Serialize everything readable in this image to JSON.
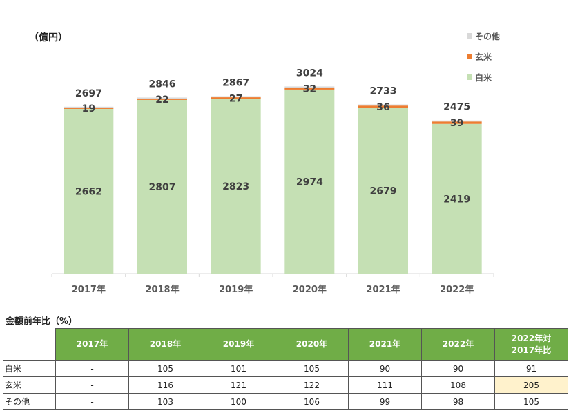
{
  "chart_data": {
    "type": "bar",
    "stacked": true,
    "unit_label": "（億円）",
    "categories": [
      "2017年",
      "2018年",
      "2019年",
      "2020年",
      "2021年",
      "2022年"
    ],
    "series": [
      {
        "name": "白米",
        "color": "#c5e0b4",
        "values": [
          2662,
          2807,
          2823,
          2974,
          2679,
          2419
        ]
      },
      {
        "name": "玄米",
        "color": "#ed7d31",
        "values": [
          19,
          22,
          27,
          32,
          36,
          39
        ]
      },
      {
        "name": "その他",
        "color": "#d9d9d9",
        "values": [
          16,
          17,
          17,
          18,
          18,
          17
        ]
      }
    ],
    "totals": [
      2697,
      2846,
      2867,
      3024,
      2733,
      2475
    ],
    "legend": [
      "その他",
      "玄米",
      "白米"
    ],
    "legend_position": "top-right",
    "ylim": [
      0,
      3100
    ]
  },
  "table": {
    "title": "金額前年比（%）",
    "headers": [
      "2017年",
      "2018年",
      "2019年",
      "2020年",
      "2021年",
      "2022年",
      "2022年対\n2017年比"
    ],
    "rows": [
      {
        "label": "白米",
        "values": [
          "-",
          "105",
          "101",
          "105",
          "90",
          "90",
          "91"
        ]
      },
      {
        "label": "玄米",
        "values": [
          "-",
          "116",
          "121",
          "122",
          "111",
          "108",
          "205"
        ]
      },
      {
        "label": "その他",
        "values": [
          "-",
          "103",
          "100",
          "106",
          "99",
          "98",
          "105"
        ]
      }
    ],
    "highlight_color": "#fff2cc"
  }
}
